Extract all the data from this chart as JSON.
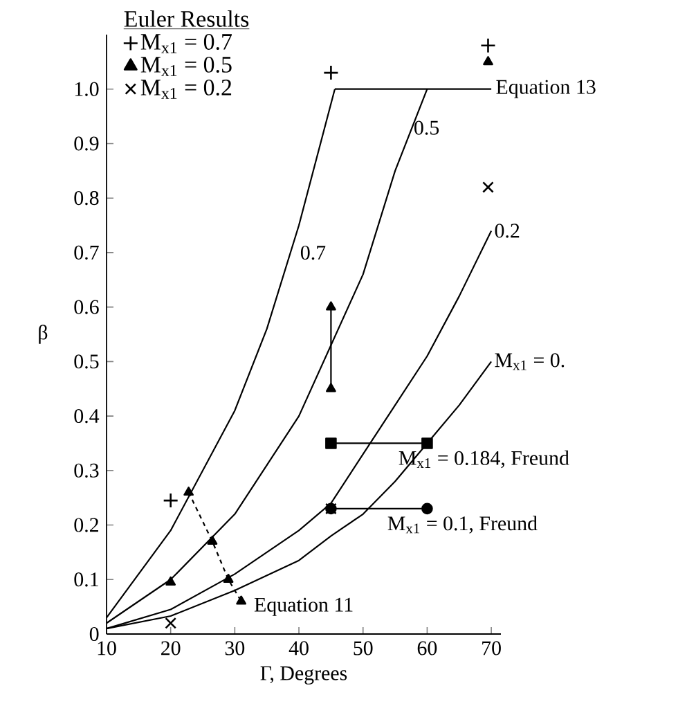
{
  "chart_data": {
    "type": "line",
    "xlabel": "Γ,  Degrees",
    "ylabel": "β",
    "xlim": [
      10,
      71.5
    ],
    "xticks": [
      10,
      20,
      30,
      40,
      50,
      60,
      70
    ],
    "ylim": [
      0,
      1.1
    ],
    "yticks": [
      0,
      0.1,
      0.2,
      0.3,
      0.4,
      0.5,
      0.6,
      0.7,
      0.8,
      0.9,
      {
        "value": 1.0,
        "label": "1.0"
      }
    ],
    "legend_title": "Euler Results",
    "legend": "top left",
    "series": [
      {
        "color": "#000000",
        "marker": "none",
        "x": [
          10,
          20,
          30,
          35,
          40,
          45.6
        ],
        "values": [
          0.03,
          0.19,
          0.41,
          0.56,
          0.75,
          1.0
        ]
      },
      {
        "color": "#000000",
        "marker": "none",
        "x": [
          45.6,
          70
        ],
        "values": [
          1.0,
          1.0
        ]
      },
      {
        "color": "#000000",
        "marker": "none",
        "x": [
          10,
          20,
          30,
          40,
          45,
          50,
          55,
          60
        ],
        "values": [
          0.02,
          0.1,
          0.22,
          0.4,
          0.53,
          0.66,
          0.85,
          1.0
        ]
      },
      {
        "color": "#000000",
        "marker": "none",
        "x": [
          10,
          20,
          30,
          40,
          45,
          50,
          55,
          60,
          65,
          70
        ],
        "values": [
          0.01,
          0.045,
          0.11,
          0.19,
          0.24,
          0.33,
          0.42,
          0.51,
          0.62,
          0.74
        ]
      },
      {
        "color": "#000000",
        "marker": "none",
        "x": [
          10,
          20,
          30,
          40,
          45,
          50,
          55,
          60,
          65,
          70
        ],
        "values": [
          0.01,
          0.033,
          0.08,
          0.135,
          0.18,
          0.22,
          0.28,
          0.35,
          0.42,
          0.5
        ]
      },
      {
        "color": "#000000",
        "marker": "triangle",
        "line_style": "dashed",
        "x": [
          22.8,
          26.5,
          29,
          31
        ],
        "values": [
          0.26,
          0.17,
          0.1,
          0.06
        ]
      },
      {
        "color": "#000000",
        "marker": "triangle",
        "x": [
          45,
          45
        ],
        "values": [
          0.45,
          0.6
        ]
      },
      {
        "color": "#000000",
        "marker": "square",
        "x": [
          45,
          60
        ],
        "values": [
          0.35,
          0.35
        ]
      },
      {
        "color": "#000000",
        "marker": "circle",
        "x": [
          45,
          60
        ],
        "values": [
          0.23,
          0.23
        ]
      },
      {
        "type": "scatter",
        "name": "M$_{x1}$ = 0.7",
        "color": "#000000",
        "marker": "plus",
        "x": [
          20,
          45,
          69.5
        ],
        "values": [
          0.245,
          1.03,
          1.08
        ]
      },
      {
        "type": "scatter",
        "name": "M$_{x1}$ = 0.5",
        "color": "#000000",
        "marker": "triangle",
        "x": [
          20,
          69.5
        ],
        "values": [
          0.095,
          1.05
        ]
      },
      {
        "type": "scatter",
        "name": "M$_{x1}$ = 0.2",
        "color": "#000000",
        "marker": "cross",
        "x": [
          20,
          45,
          69.5
        ],
        "values": [
          0.02,
          0.23,
          0.82
        ]
      }
    ],
    "annotations": [
      {
        "text": "0.7",
        "x": 39.5,
        "y": 0.71
      },
      {
        "text": "0.5",
        "x": 58.5,
        "y": 0.95
      },
      {
        "text": "0.2",
        "x": 70,
        "y": 0.74
      },
      {
        "text": "M$_{x1}$ = 0.",
        "x": 70,
        "y": 0.5
      },
      {
        "text": "Equation 13",
        "x": 70,
        "y": 1.0
      },
      {
        "text": "Equation 11",
        "x": 31,
        "y": 0.06
      },
      {
        "text": "M$_{x1}$ = 0.184, Freund",
        "x": 60,
        "y": 0.35
      },
      {
        "text": "M$_{x1}$ = 0.1, Freund",
        "x": 60,
        "y": 0.23
      }
    ]
  }
}
